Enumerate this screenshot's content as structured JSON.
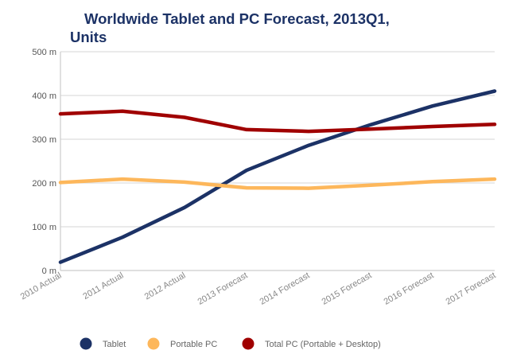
{
  "chart_data": {
    "type": "line",
    "title_lines": [
      "Worldwide Tablet and PC Forecast, 2013Q1,",
      "Units"
    ],
    "title": "Worldwide Tablet and PC Forecast, 2013Q1, Units",
    "xlabel": "",
    "ylabel": "",
    "categories": [
      "2010 Actual",
      "2011 Actual",
      "2012 Actual",
      "2013 Forecast",
      "2014 Forecast",
      "2015 Forecast",
      "2016 Forecast",
      "2017 Forecast"
    ],
    "ylim": [
      0,
      500
    ],
    "yticks": [
      0,
      100,
      200,
      300,
      400,
      500
    ],
    "ytick_labels": [
      "0 m",
      "100 m",
      "200 m",
      "300 m",
      "400 m",
      "500 m"
    ],
    "grid": true,
    "legend_position": "bottom",
    "series": [
      {
        "name": "Tablet",
        "color": "#1c3266",
        "values": [
          19,
          76,
          144,
          229,
          286,
          333,
          376,
          410
        ]
      },
      {
        "name": "Portable PC",
        "color": "#fdb75b",
        "values": [
          201,
          209,
          202,
          189,
          188,
          195,
          203,
          209
        ]
      },
      {
        "name": "Total PC (Portable + Desktop)",
        "color": "#a00000",
        "values": [
          358,
          364,
          350,
          322,
          318,
          323,
          329,
          334
        ]
      }
    ]
  }
}
